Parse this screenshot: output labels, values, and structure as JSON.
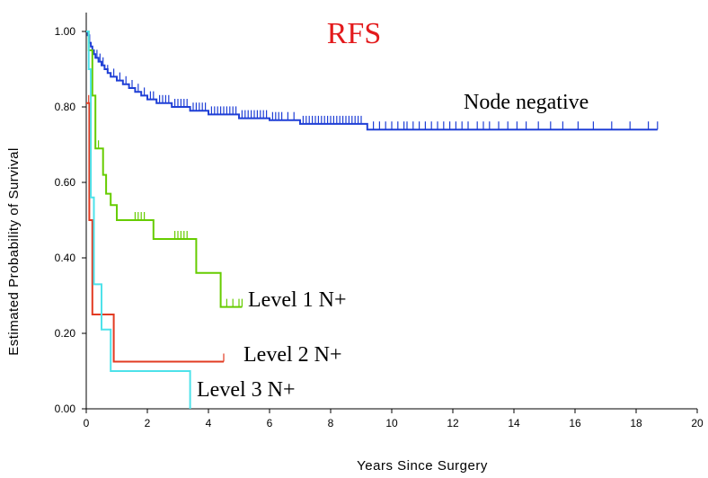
{
  "chart_data": {
    "type": "line",
    "title": "RFS",
    "xlabel": "Years  Since  Surgery",
    "ylabel": "Estimated  Probability  of  Survival",
    "xlim": [
      0,
      20
    ],
    "ylim": [
      0,
      1.0
    ],
    "x_ticks": [
      "0",
      "2",
      "4",
      "6",
      "8",
      "10",
      "12",
      "14",
      "16",
      "18",
      "20"
    ],
    "y_ticks": [
      "0.00",
      "0.20",
      "0.40",
      "0.60",
      "0.80",
      "1.00"
    ],
    "grid": false,
    "series": [
      {
        "name": "Node negative",
        "color": "#1f3fd6",
        "steps": [
          [
            0,
            1.0
          ],
          [
            0.05,
            0.99
          ],
          [
            0.1,
            0.97
          ],
          [
            0.15,
            0.96
          ],
          [
            0.2,
            0.95
          ],
          [
            0.25,
            0.94
          ],
          [
            0.3,
            0.93
          ],
          [
            0.4,
            0.92
          ],
          [
            0.5,
            0.91
          ],
          [
            0.6,
            0.9
          ],
          [
            0.7,
            0.89
          ],
          [
            0.8,
            0.88
          ],
          [
            1.0,
            0.87
          ],
          [
            1.2,
            0.86
          ],
          [
            1.4,
            0.85
          ],
          [
            1.6,
            0.84
          ],
          [
            1.8,
            0.83
          ],
          [
            2.0,
            0.82
          ],
          [
            2.3,
            0.81
          ],
          [
            2.8,
            0.8
          ],
          [
            3.4,
            0.79
          ],
          [
            4.0,
            0.78
          ],
          [
            5.0,
            0.77
          ],
          [
            6.0,
            0.765
          ],
          [
            7.0,
            0.755
          ],
          [
            9.2,
            0.74
          ],
          [
            18.7,
            0.74
          ]
        ],
        "censor_marks": [
          0.35,
          0.45,
          0.55,
          0.7,
          0.9,
          1.1,
          1.3,
          1.5,
          1.7,
          1.9,
          2.1,
          2.2,
          2.4,
          2.5,
          2.6,
          2.7,
          2.9,
          3.0,
          3.1,
          3.2,
          3.3,
          3.5,
          3.6,
          3.7,
          3.8,
          3.9,
          4.1,
          4.2,
          4.3,
          4.4,
          4.5,
          4.6,
          4.7,
          4.8,
          4.9,
          5.1,
          5.2,
          5.3,
          5.4,
          5.5,
          5.6,
          5.7,
          5.8,
          5.9,
          6.1,
          6.2,
          6.3,
          6.4,
          6.6,
          6.8,
          7.1,
          7.2,
          7.3,
          7.4,
          7.5,
          7.6,
          7.7,
          7.8,
          7.9,
          8.0,
          8.1,
          8.2,
          8.3,
          8.4,
          8.5,
          8.6,
          8.7,
          8.8,
          8.9,
          9.0,
          9.4,
          9.6,
          9.8,
          10.0,
          10.2,
          10.4,
          10.5,
          10.7,
          10.9,
          11.1,
          11.3,
          11.5,
          11.7,
          11.9,
          12.1,
          12.3,
          12.5,
          12.8,
          13.0,
          13.2,
          13.5,
          13.8,
          14.1,
          14.4,
          14.8,
          15.2,
          15.6,
          16.1,
          16.6,
          17.2,
          17.8,
          18.4,
          18.7
        ]
      },
      {
        "name": "Level 1 N+",
        "color": "#66cc00",
        "steps": [
          [
            0,
            1.0
          ],
          [
            0.08,
            0.95
          ],
          [
            0.2,
            0.83
          ],
          [
            0.3,
            0.69
          ],
          [
            0.55,
            0.62
          ],
          [
            0.65,
            0.57
          ],
          [
            0.8,
            0.54
          ],
          [
            1.0,
            0.5
          ],
          [
            2.2,
            0.45
          ],
          [
            3.6,
            0.36
          ],
          [
            4.4,
            0.27
          ],
          [
            5.1,
            0.27
          ]
        ],
        "censor_marks": [
          0.3,
          0.4,
          1.6,
          1.7,
          1.8,
          1.9,
          2.9,
          3.0,
          3.1,
          3.2,
          3.3,
          4.6,
          4.8,
          5.0,
          5.1
        ]
      },
      {
        "name": "Level 2 N+",
        "color": "#e23b22",
        "steps": [
          [
            0,
            0.81
          ],
          [
            0.1,
            0.5
          ],
          [
            0.2,
            0.25
          ],
          [
            0.9,
            0.125
          ],
          [
            4.5,
            0.125
          ]
        ],
        "censor_marks": [
          0.08,
          4.5
        ]
      },
      {
        "name": "Level 3 N+",
        "color": "#4ee2ea",
        "steps": [
          [
            0,
            1.0
          ],
          [
            0.08,
            0.9
          ],
          [
            0.15,
            0.56
          ],
          [
            0.25,
            0.33
          ],
          [
            0.5,
            0.21
          ],
          [
            0.8,
            0.1
          ],
          [
            3.4,
            0.0
          ]
        ],
        "censor_marks": []
      }
    ]
  }
}
